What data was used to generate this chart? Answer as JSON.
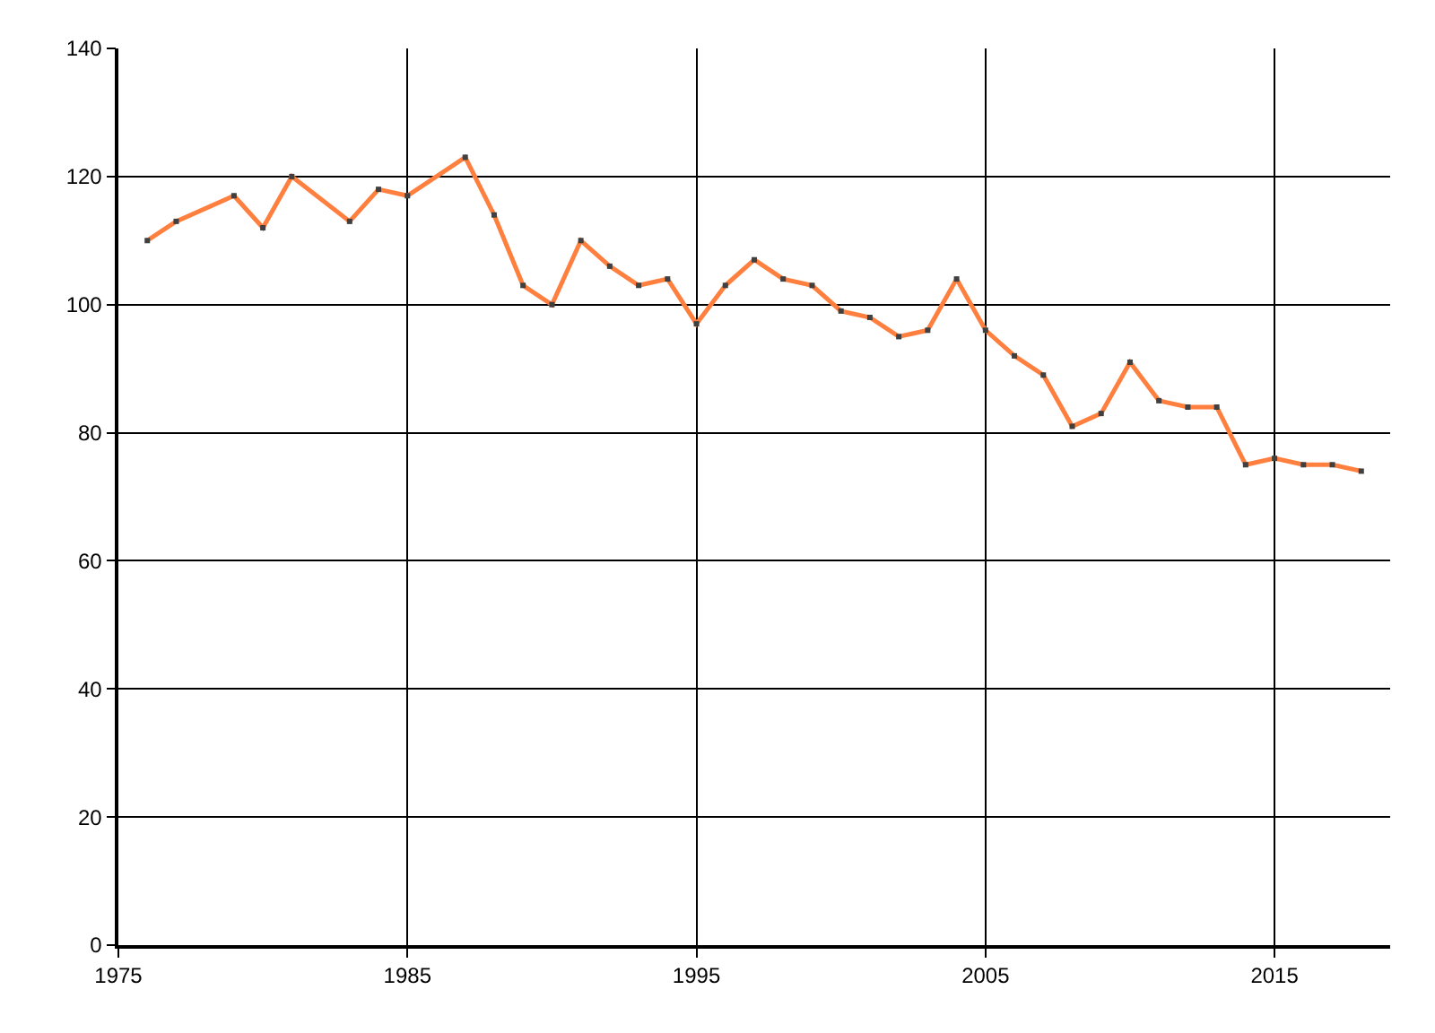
{
  "chart_data": {
    "type": "line",
    "x": [
      1976,
      1977,
      1979,
      1980,
      1981,
      1983,
      1984,
      1985,
      1987,
      1988,
      1989,
      1990,
      1991,
      1992,
      1993,
      1994,
      1995,
      1996,
      1997,
      1998,
      1999,
      2000,
      2001,
      2002,
      2003,
      2004,
      2005,
      2006,
      2007,
      2008,
      2009,
      2010,
      2011,
      2012,
      2013,
      2014,
      2015,
      2016,
      2017,
      2018
    ],
    "series": [
      {
        "color": "#ff7f3f",
        "values": [
          110,
          113,
          117,
          112,
          120,
          113,
          118,
          117,
          123,
          114,
          103,
          100,
          110,
          106,
          103,
          104,
          97,
          103,
          107,
          104,
          103,
          99,
          98,
          95,
          96,
          104,
          96,
          92,
          89,
          81,
          83,
          91,
          85,
          84,
          84,
          75,
          76,
          75,
          75,
          74
        ]
      }
    ],
    "xlim": [
      1975,
      2019
    ],
    "xticks": [
      1975,
      1985,
      1995,
      2005,
      2015
    ],
    "ylim": [
      0,
      140
    ],
    "yticks": [
      0,
      20,
      40,
      60,
      80,
      100,
      120,
      140
    ],
    "grid": true,
    "marker": "square",
    "line_style": "solid",
    "legend": false
  }
}
